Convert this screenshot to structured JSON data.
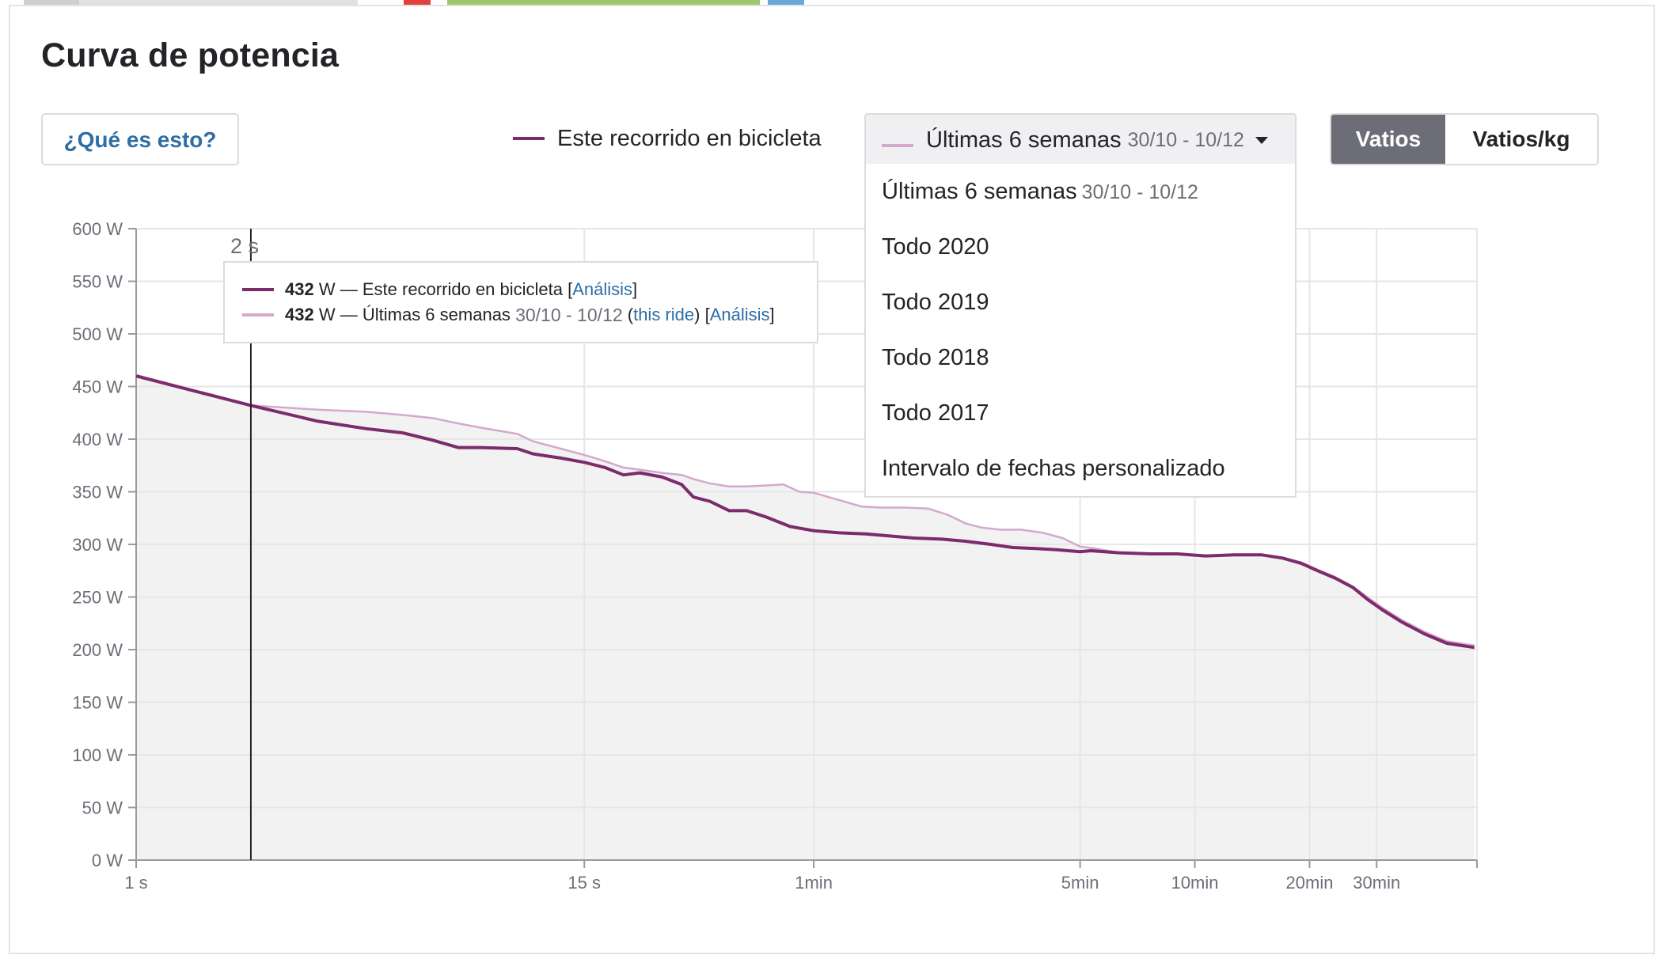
{
  "page": {
    "title": "Curva de potencia"
  },
  "help_button": {
    "label": "¿Qué es esto?"
  },
  "legend": {
    "ride_label": "Este recorrido en bicicleta",
    "ride_color": "#7c2b6c",
    "compare_color": "#d4a9cc"
  },
  "range_select": {
    "selected_label": "Últimas 6 semanas",
    "selected_dates": "30/10 - 10/12",
    "options": [
      {
        "label": "Últimas 6 semanas",
        "dates": "30/10 - 10/12"
      },
      {
        "label": "Todo 2020",
        "dates": ""
      },
      {
        "label": "Todo 2019",
        "dates": ""
      },
      {
        "label": "Todo 2018",
        "dates": ""
      },
      {
        "label": "Todo 2017",
        "dates": ""
      },
      {
        "label": "Intervalo de fechas personalizado",
        "dates": ""
      }
    ]
  },
  "unit_toggle": {
    "watts_label": "Vatios",
    "wkg_label": "Vatios/kg",
    "selected": "watts"
  },
  "tooltip": {
    "time_label": "2 s",
    "ride_value": "432",
    "unit": "W",
    "separator": "—",
    "ride_label": "Este recorrido en bicicleta",
    "analysis_link": "Análisis",
    "compare_value": "432",
    "compare_label": "Últimas 6 semanas",
    "compare_dates": "30/10 - 10/12",
    "this_ride_link": "this ride"
  },
  "chart_data": {
    "type": "line",
    "x_scale": "log",
    "x_unit": "seconds",
    "ylim": [
      0,
      600
    ],
    "y_ticks": [
      {
        "value": 0,
        "label": "0 W"
      },
      {
        "value": 50,
        "label": "50 W"
      },
      {
        "value": 100,
        "label": "100 W"
      },
      {
        "value": 150,
        "label": "150 W"
      },
      {
        "value": 200,
        "label": "200 W"
      },
      {
        "value": 250,
        "label": "250 W"
      },
      {
        "value": 300,
        "label": "300 W"
      },
      {
        "value": 350,
        "label": "350 W"
      },
      {
        "value": 400,
        "label": "400 W"
      },
      {
        "value": 450,
        "label": "450 W"
      },
      {
        "value": 500,
        "label": "500 W"
      },
      {
        "value": 550,
        "label": "550 W"
      },
      {
        "value": 600,
        "label": "600 W"
      }
    ],
    "x_ticks": [
      {
        "value": 1,
        "label": "1 s"
      },
      {
        "value": 15,
        "label": "15 s"
      },
      {
        "value": 60,
        "label": "1min"
      },
      {
        "value": 300,
        "label": "5min"
      },
      {
        "value": 600,
        "label": "10min"
      },
      {
        "value": 1200,
        "label": "20min"
      },
      {
        "value": 1800,
        "label": "30min"
      }
    ],
    "xlim": [
      1,
      3300
    ],
    "hover_x": 2,
    "grid": true,
    "series": [
      {
        "name": "Este recorrido en bicicleta",
        "color": "#7c2b6c",
        "points": [
          [
            1,
            460
          ],
          [
            2,
            432
          ],
          [
            3,
            417
          ],
          [
            4,
            410
          ],
          [
            5,
            406
          ],
          [
            6,
            399
          ],
          [
            7,
            392
          ],
          [
            8,
            392
          ],
          [
            10,
            391
          ],
          [
            11,
            386
          ],
          [
            13,
            382
          ],
          [
            15,
            378
          ],
          [
            17,
            373
          ],
          [
            19,
            366
          ],
          [
            21,
            368
          ],
          [
            24,
            364
          ],
          [
            27,
            357
          ],
          [
            29,
            345
          ],
          [
            32,
            341
          ],
          [
            36,
            332
          ],
          [
            40,
            332
          ],
          [
            45,
            326
          ],
          [
            52,
            317
          ],
          [
            60,
            313
          ],
          [
            70,
            311
          ],
          [
            82,
            310
          ],
          [
            95,
            308
          ],
          [
            110,
            306
          ],
          [
            130,
            305
          ],
          [
            150,
            303
          ],
          [
            175,
            300
          ],
          [
            200,
            297
          ],
          [
            230,
            296
          ],
          [
            260,
            295
          ],
          [
            300,
            293
          ],
          [
            320,
            294
          ],
          [
            380,
            292
          ],
          [
            460,
            291
          ],
          [
            540,
            291
          ],
          [
            640,
            289
          ],
          [
            760,
            290
          ],
          [
            900,
            290
          ],
          [
            1020,
            287
          ],
          [
            1140,
            282
          ],
          [
            1260,
            275
          ],
          [
            1400,
            268
          ],
          [
            1560,
            259
          ],
          [
            1700,
            248
          ],
          [
            1860,
            238
          ],
          [
            2100,
            226
          ],
          [
            2400,
            215
          ],
          [
            2750,
            206
          ],
          [
            3250,
            202
          ]
        ]
      },
      {
        "name": "Últimas 6 semanas",
        "color": "#d4a9cc",
        "points": [
          [
            1,
            461
          ],
          [
            2,
            432
          ],
          [
            3,
            428
          ],
          [
            4,
            426
          ],
          [
            5,
            423
          ],
          [
            6,
            420
          ],
          [
            7,
            415
          ],
          [
            8,
            411
          ],
          [
            10,
            405
          ],
          [
            11,
            398
          ],
          [
            13,
            391
          ],
          [
            15,
            385
          ],
          [
            17,
            379
          ],
          [
            19,
            373
          ],
          [
            21,
            371
          ],
          [
            24,
            368
          ],
          [
            27,
            366
          ],
          [
            29,
            362
          ],
          [
            32,
            358
          ],
          [
            36,
            355
          ],
          [
            40,
            355
          ],
          [
            45,
            356
          ],
          [
            50,
            357
          ],
          [
            55,
            350
          ],
          [
            60,
            349
          ],
          [
            70,
            342
          ],
          [
            80,
            336
          ],
          [
            90,
            335
          ],
          [
            105,
            335
          ],
          [
            120,
            334
          ],
          [
            135,
            328
          ],
          [
            150,
            320
          ],
          [
            165,
            316
          ],
          [
            185,
            314
          ],
          [
            210,
            314
          ],
          [
            240,
            311
          ],
          [
            270,
            306
          ],
          [
            300,
            298
          ],
          [
            330,
            296
          ],
          [
            380,
            292
          ],
          [
            460,
            291
          ],
          [
            540,
            291
          ],
          [
            640,
            289
          ],
          [
            760,
            290
          ],
          [
            900,
            290
          ],
          [
            1020,
            287
          ],
          [
            1140,
            283
          ],
          [
            1260,
            276
          ],
          [
            1400,
            269
          ],
          [
            1560,
            260
          ],
          [
            1700,
            250
          ],
          [
            1860,
            240
          ],
          [
            2100,
            228
          ],
          [
            2400,
            217
          ],
          [
            2750,
            208
          ],
          [
            3250,
            204
          ]
        ]
      }
    ]
  }
}
